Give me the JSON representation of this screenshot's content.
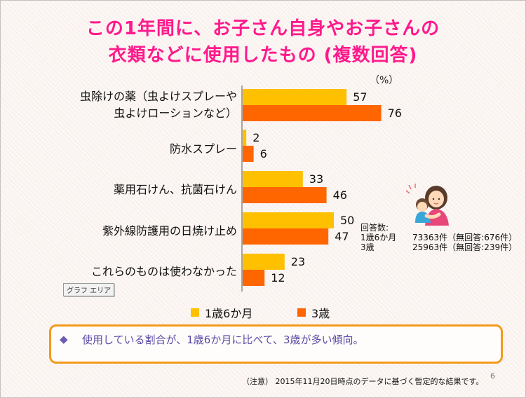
{
  "title_line1": "この1年間に、お子さん自身やお子さんの",
  "title_line2": "衣類などに使用したもの (複数回答)",
  "unit": "（%）",
  "colors": {
    "series1": "#ffc000",
    "series2": "#ff6600",
    "title": "#ff1a8c",
    "note_border": "#f29a1a",
    "note_text": "#5a49a6"
  },
  "category_labels": [
    [
      "虫除けの薬（虫よけスプレーや",
      "虫よけローションなど）"
    ],
    [
      "防水スプレー"
    ],
    [
      "薬用石けん、抗菌石けん"
    ],
    [
      "紫外線防護用の日焼け止め"
    ],
    [
      "これらのものは使わなかった"
    ]
  ],
  "chart_data": {
    "type": "bar",
    "orientation": "horizontal",
    "categories": [
      "虫除けの薬（虫よけスプレーや虫よけローションなど）",
      "防水スプレー",
      "薬用石けん、抗菌石けん",
      "紫外線防護用の日焼け止め",
      "これらのものは使わなかった"
    ],
    "series": [
      {
        "name": "1歳6か月",
        "values": [
          57,
          2,
          33,
          50,
          23
        ]
      },
      {
        "name": "3歳",
        "values": [
          76,
          6,
          46,
          47,
          12
        ]
      }
    ],
    "ylabel": "（%）",
    "xlim": [
      0,
      100
    ],
    "grid": false,
    "legend": "bottom"
  },
  "legend": {
    "s1": "1歳6か月",
    "s2": "3歳"
  },
  "graph_area_label": "グラフ エリア",
  "answers": {
    "heading": "回答数:",
    "rows": [
      {
        "label": "1歳6か月",
        "value": "73363件（無回答:676件）"
      },
      {
        "label": "3歳",
        "value": "25963件（無回答:239件）"
      }
    ]
  },
  "note": {
    "bullet": "◆",
    "text": "使用している割合が、1歳6か月に比べて、3歳が多い傾向。"
  },
  "footnote": "（注意） 2015年11月20日時点のデータに基づく暫定的な結果です。",
  "page_number": "6"
}
